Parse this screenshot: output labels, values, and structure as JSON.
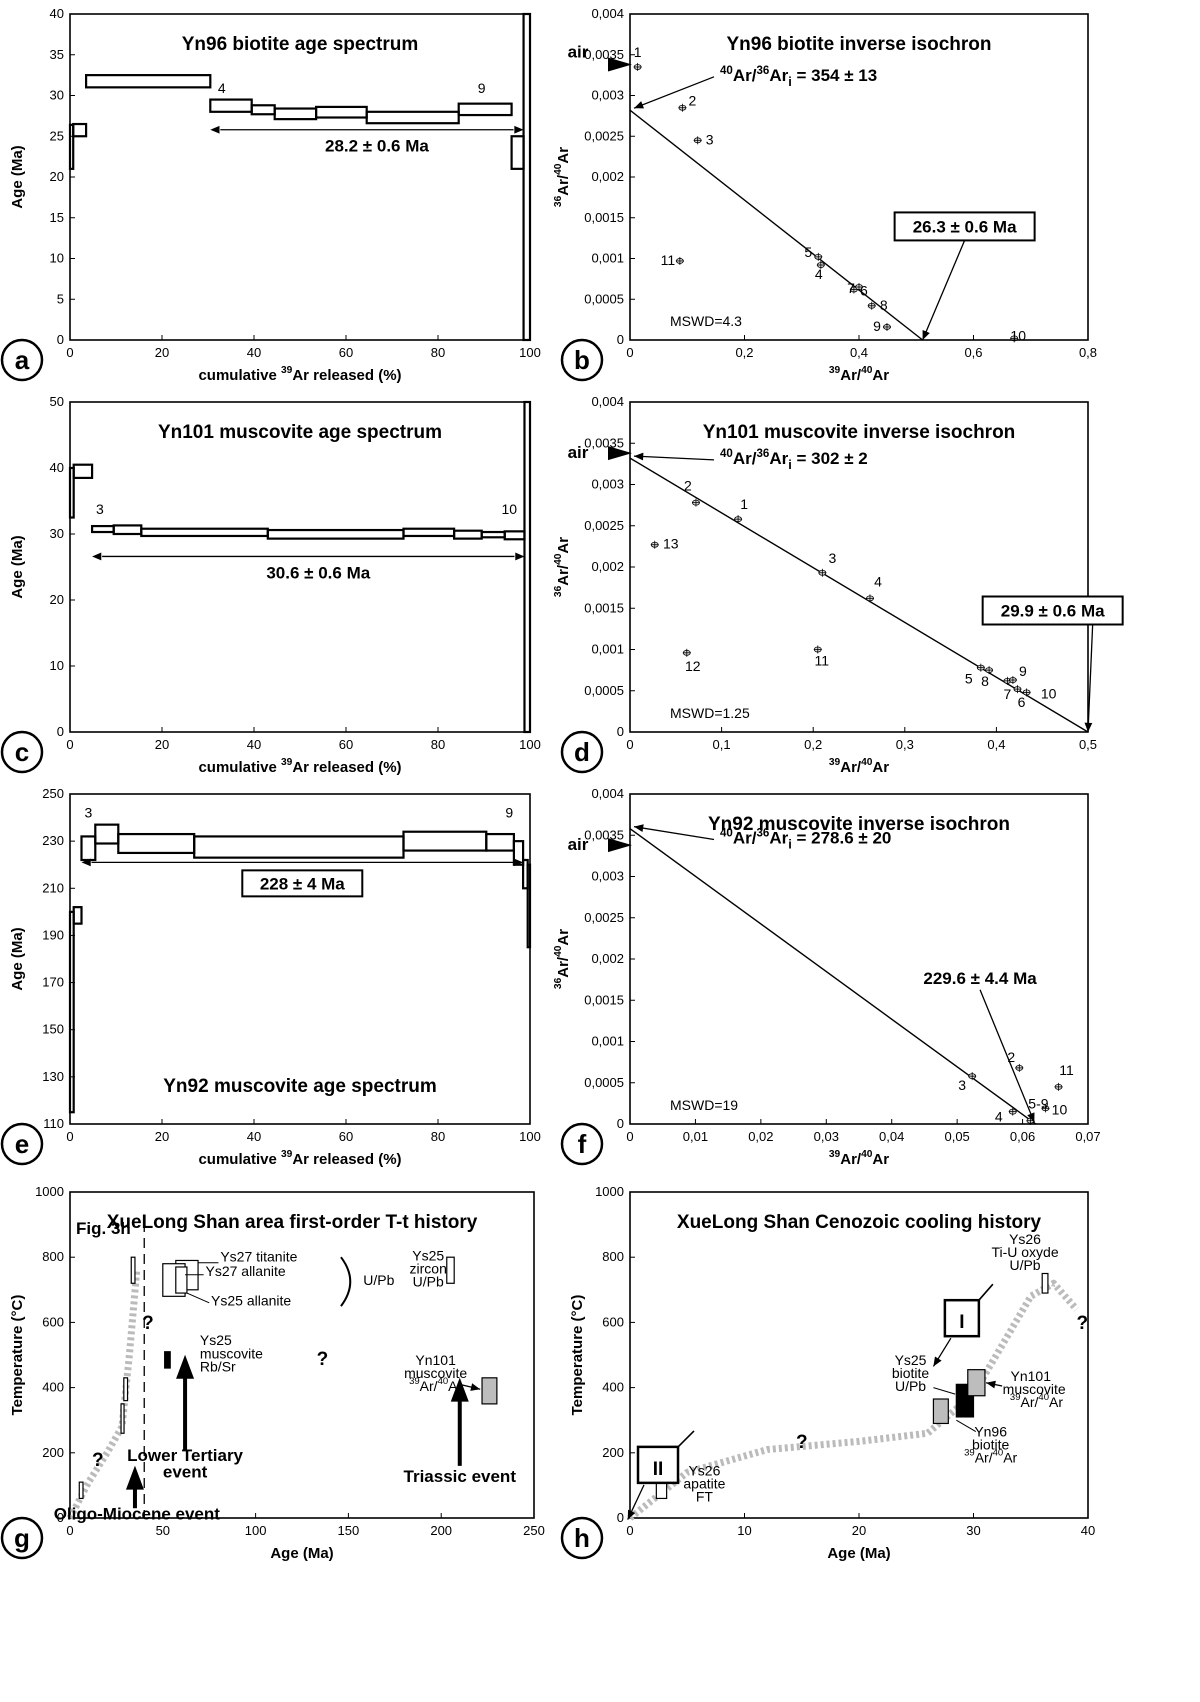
{
  "chart_data": [
    {
      "panel": "a",
      "type": "step",
      "title": "Yn96 biotite age spectrum",
      "xlabel": "cumulative 39Ar released (%)",
      "ylabel": "Age (Ma)",
      "xlim": [
        0,
        100
      ],
      "ylim": [
        0,
        40
      ],
      "xticks": [
        "0",
        "20",
        "40",
        "60",
        "80",
        "100"
      ],
      "yticks": [
        "0",
        "5",
        "10",
        "15",
        "20",
        "25",
        "30",
        "35",
        "40"
      ],
      "steps": [
        {
          "x0": 0,
          "x1": 0.7,
          "lo": 21.0,
          "hi": 26.4
        },
        {
          "x0": 0.7,
          "x1": 3.5,
          "lo": 25.0,
          "hi": 26.5
        },
        {
          "x0": 3.5,
          "x1": 30.5,
          "lo": 31.0,
          "hi": 32.5
        },
        {
          "x0": 30.5,
          "x1": 39.5,
          "lo": 28.0,
          "hi": 29.5
        },
        {
          "x0": 39.5,
          "x1": 44.5,
          "lo": 27.7,
          "hi": 28.8
        },
        {
          "x0": 44.5,
          "x1": 53.5,
          "lo": 27.1,
          "hi": 28.4
        },
        {
          "x0": 53.5,
          "x1": 64.5,
          "lo": 27.3,
          "hi": 28.6
        },
        {
          "x0": 64.5,
          "x1": 84.5,
          "lo": 26.6,
          "hi": 28.0
        },
        {
          "x0": 84.5,
          "x1": 96.0,
          "lo": 27.6,
          "hi": 29.0
        },
        {
          "x0": 96.0,
          "x1": 98.6,
          "lo": 21.0,
          "hi": 25.0
        },
        {
          "x0": 98.6,
          "x1": 100,
          "lo": 0,
          "hi": 40
        }
      ],
      "plateau": {
        "x0": 30.5,
        "x1": 98.6,
        "y": 25.8,
        "label": "28.2 ± 0.6 Ma",
        "boxed": false
      },
      "step_labels": [
        {
          "text": "4",
          "x": 33,
          "y": 30.3
        },
        {
          "text": "9",
          "x": 89.5,
          "y": 30.3
        }
      ]
    },
    {
      "panel": "b",
      "type": "scatter",
      "title": "Yn96 biotite inverse isochron",
      "xlabel": "39Ar/40Ar",
      "ylabel": "36Ar/40Ar",
      "xlim": [
        0,
        0.9
      ],
      "ylim": [
        0,
        0.004
      ],
      "xticks": [
        "0",
        "0,2",
        "0,4",
        "0,6",
        "0,8"
      ],
      "yticks": [
        "0",
        "0,0005",
        "0,001",
        "0,0015",
        "0,002",
        "0,0025",
        "0,003",
        "0,0035",
        "0,004"
      ],
      "points": [
        {
          "label": "1",
          "x": 0.015,
          "y": 0.00335
        },
        {
          "label": "2",
          "x": 0.103,
          "y": 0.00285
        },
        {
          "label": "3",
          "x": 0.133,
          "y": 0.00245
        },
        {
          "label": "4",
          "x": 0.375,
          "y": 0.00092
        },
        {
          "label": "5",
          "x": 0.37,
          "y": 0.00102
        },
        {
          "label": "6",
          "x": 0.44,
          "y": 0.00062
        },
        {
          "label": "7",
          "x": 0.45,
          "y": 0.00065
        },
        {
          "label": "8",
          "x": 0.475,
          "y": 0.00042
        },
        {
          "label": "9",
          "x": 0.505,
          "y": 0.00016
        },
        {
          "label": "10",
          "x": 0.755,
          "y": 2e-05
        },
        {
          "label": "11",
          "x": 0.098,
          "y": 0.00097
        }
      ],
      "isochron_line": {
        "x": [
          0,
          0.575
        ],
        "y": [
          0.00282,
          0
        ]
      },
      "air_label": "air",
      "air_y": 0.00338,
      "intercept_label": "40Ar/36Ari = 354 ± 13",
      "age_label": "26.3 ± 0.6 Ma",
      "mswd": "MSWD=4.3"
    },
    {
      "panel": "c",
      "type": "step",
      "title": "Yn101 muscovite age spectrum",
      "xlabel": "cumulative 39Ar released (%)",
      "ylabel": "Age (Ma)",
      "xlim": [
        0,
        100
      ],
      "ylim": [
        0,
        50
      ],
      "xticks": [
        "0",
        "20",
        "40",
        "60",
        "80",
        "100"
      ],
      "yticks": [
        "0",
        "10",
        "20",
        "30",
        "40",
        "50"
      ],
      "steps": [
        {
          "x0": 0,
          "x1": 0.8,
          "lo": 32.5,
          "hi": 40.0
        },
        {
          "x0": 0.8,
          "x1": 4.8,
          "lo": 38.5,
          "hi": 40.5
        },
        {
          "x0": 4.8,
          "x1": 9.5,
          "lo": 30.3,
          "hi": 31.2
        },
        {
          "x0": 9.5,
          "x1": 15.5,
          "lo": 30.0,
          "hi": 31.3
        },
        {
          "x0": 15.5,
          "x1": 43.0,
          "lo": 29.7,
          "hi": 30.8
        },
        {
          "x0": 43.0,
          "x1": 72.5,
          "lo": 29.3,
          "hi": 30.6
        },
        {
          "x0": 72.5,
          "x1": 83.5,
          "lo": 29.7,
          "hi": 30.8
        },
        {
          "x0": 83.5,
          "x1": 89.5,
          "lo": 29.3,
          "hi": 30.5
        },
        {
          "x0": 89.5,
          "x1": 94.5,
          "lo": 29.5,
          "hi": 30.3
        },
        {
          "x0": 94.5,
          "x1": 98.8,
          "lo": 29.2,
          "hi": 30.4
        },
        {
          "x0": 98.8,
          "x1": 100,
          "lo": 0,
          "hi": 50
        }
      ],
      "plateau": {
        "x0": 4.8,
        "x1": 98.8,
        "y": 26.6,
        "label": "30.6 ± 0.6 Ma",
        "boxed": false
      },
      "step_labels": [
        {
          "text": "3",
          "x": 6.5,
          "y": 33
        },
        {
          "text": "10",
          "x": 95.5,
          "y": 33
        }
      ]
    },
    {
      "panel": "d",
      "type": "scatter",
      "title": "Yn101 muscovite inverse isochron",
      "xlabel": "39Ar/40Ar",
      "ylabel": "36Ar/40Ar",
      "xlim": [
        0,
        0.5
      ],
      "ylim": [
        0,
        0.004
      ],
      "xticks": [
        "0",
        "0,1",
        "0,2",
        "0,3",
        "0,4",
        "0,5"
      ],
      "yticks": [
        "0",
        "0,0005",
        "0,001",
        "0,0015",
        "0,002",
        "0,0025",
        "0,003",
        "0,0035",
        "0,004"
      ],
      "points": [
        {
          "label": "1",
          "x": 0.118,
          "y": 0.00258
        },
        {
          "label": "2",
          "x": 0.072,
          "y": 0.00278
        },
        {
          "label": "3",
          "x": 0.21,
          "y": 0.00193
        },
        {
          "label": "4",
          "x": 0.262,
          "y": 0.00162
        },
        {
          "label": "5",
          "x": 0.383,
          "y": 0.00078
        },
        {
          "label": "6",
          "x": 0.423,
          "y": 0.00052
        },
        {
          "label": "7",
          "x": 0.412,
          "y": 0.00062
        },
        {
          "label": "8",
          "x": 0.392,
          "y": 0.00075
        },
        {
          "label": "9",
          "x": 0.418,
          "y": 0.00063
        },
        {
          "label": "10",
          "x": 0.433,
          "y": 0.00048
        },
        {
          "label": "11",
          "x": 0.205,
          "y": 0.001
        },
        {
          "label": "12",
          "x": 0.062,
          "y": 0.00096
        },
        {
          "label": "13",
          "x": 0.027,
          "y": 0.00227
        }
      ],
      "isochron_line": {
        "x": [
          0,
          0.5
        ],
        "y": [
          0.00332,
          0
        ]
      },
      "air_label": "air",
      "air_y": 0.00338,
      "intercept_label": "40Ar/36Ari = 302 ± 2",
      "age_label": "29.9 ± 0.6 Ma",
      "mswd": "MSWD=1.25"
    },
    {
      "panel": "e",
      "type": "step",
      "title": "Yn92 muscovite age spectrum",
      "xlabel": "cumulative 39Ar released (%)",
      "ylabel": "Age (Ma)",
      "xlim": [
        0,
        100
      ],
      "ylim": [
        110,
        250
      ],
      "xticks": [
        "0",
        "20",
        "40",
        "60",
        "80",
        "100"
      ],
      "yticks": [
        "110",
        "130",
        "150",
        "170",
        "190",
        "210",
        "230",
        "250"
      ],
      "steps": [
        {
          "x0": 0,
          "x1": 0.8,
          "lo": 115,
          "hi": 200
        },
        {
          "x0": 0.8,
          "x1": 2.5,
          "lo": 195,
          "hi": 202
        },
        {
          "x0": 2.5,
          "x1": 5.5,
          "lo": 222,
          "hi": 232
        },
        {
          "x0": 5.5,
          "x1": 10.5,
          "lo": 229,
          "hi": 237
        },
        {
          "x0": 10.5,
          "x1": 27.0,
          "lo": 225,
          "hi": 233
        },
        {
          "x0": 27.0,
          "x1": 72.5,
          "lo": 223,
          "hi": 232
        },
        {
          "x0": 72.5,
          "x1": 90.5,
          "lo": 226,
          "hi": 234
        },
        {
          "x0": 90.5,
          "x1": 96.5,
          "lo": 226,
          "hi": 233
        },
        {
          "x0": 96.5,
          "x1": 98.5,
          "lo": 220,
          "hi": 230
        },
        {
          "x0": 98.5,
          "x1": 99.5,
          "lo": 210,
          "hi": 222
        },
        {
          "x0": 99.5,
          "x1": 100,
          "lo": 185,
          "hi": 220
        }
      ],
      "plateau": {
        "x0": 2.5,
        "x1": 98.5,
        "y": 221,
        "label": "228 ± 4 Ma",
        "boxed": true
      },
      "step_labels": [
        {
          "text": "3",
          "x": 4,
          "y": 240
        },
        {
          "text": "9",
          "x": 95.5,
          "y": 240
        }
      ]
    },
    {
      "panel": "f",
      "type": "scatter",
      "title": "Yn92 muscovite inverse isochron",
      "xlabel": "39Ar/40Ar",
      "ylabel": "36Ar/40Ar",
      "xlim": [
        0,
        0.07
      ],
      "ylim": [
        0,
        0.004
      ],
      "xticks": [
        "0",
        "0,01",
        "0,02",
        "0,03",
        "0,04",
        "0,05",
        "0,06",
        "0,07"
      ],
      "yticks": [
        "0",
        "0,0005",
        "0,001",
        "0,0015",
        "0,002",
        "0,0025",
        "0,003",
        "0,0035",
        "0,004"
      ],
      "points": [
        {
          "label": "2",
          "x": 0.0595,
          "y": 0.00068
        },
        {
          "label": "3",
          "x": 0.0523,
          "y": 0.00058
        },
        {
          "label": "4",
          "x": 0.0585,
          "y": 0.00015
        },
        {
          "label": "5-9",
          "x": 0.0612,
          "y": 4e-05
        },
        {
          "label": "10",
          "x": 0.0635,
          "y": 0.00019
        },
        {
          "label": "11",
          "x": 0.0655,
          "y": 0.00045
        }
      ],
      "isochron_line": {
        "x": [
          0,
          0.062
        ],
        "y": [
          0.00358,
          0
        ]
      },
      "air_label": "air",
      "air_y": 0.00338,
      "intercept_label": "40Ar/36Ari = 278.6 ± 20",
      "age_label": "229.6 ± 4.4 Ma",
      "mswd": "MSWD=19"
    },
    {
      "panel": "g",
      "type": "thermal-history",
      "title": "XueLong Shan area first-order T-t history",
      "xlabel": "Age (Ma)",
      "ylabel": "Temperature (°C)",
      "xlim": [
        0,
        250
      ],
      "ylim": [
        0,
        1000
      ],
      "xticks": [
        "0",
        "50",
        "100",
        "150",
        "200",
        "250"
      ],
      "yticks": [
        "0",
        "200",
        "400",
        "600",
        "800",
        "1000"
      ],
      "ref_label": "Fig. 3h",
      "boxes": [
        {
          "label": "Ys27 titanite",
          "x0": 57,
          "x1": 69,
          "y0": 700,
          "y1": 790
        },
        {
          "label": "Ys27 allanite",
          "x0": 50,
          "x1": 62,
          "y0": 680,
          "y1": 780
        },
        {
          "label": "Ys25 allanite",
          "x0": 57,
          "x1": 63,
          "y0": 690,
          "y1": 770
        },
        {
          "label": "Ys25 zircon U/Pb",
          "x0": 203,
          "x1": 207,
          "y0": 720,
          "y1": 800
        },
        {
          "label": "Ys25 muscovite Rb/Sr",
          "x0": 51,
          "x1": 54,
          "y0": 460,
          "y1": 510,
          "fill": "black"
        },
        {
          "label": "Yn101 muscovite 39Ar/40Ar",
          "x0": 222,
          "x1": 230,
          "y0": 350,
          "y1": 430,
          "fill": "gray"
        },
        {
          "label": "",
          "x0": 33,
          "x1": 35,
          "y0": 720,
          "y1": 800
        },
        {
          "label": "",
          "x0": 29,
          "x1": 31,
          "y0": 360,
          "y1": 430
        },
        {
          "label": "",
          "x0": 27.5,
          "x1": 29,
          "y0": 260,
          "y1": 350
        },
        {
          "label": "",
          "x0": 5,
          "x1": 7,
          "y0": 60,
          "y1": 110
        }
      ],
      "path_points": [
        [
          0,
          0
        ],
        [
          10,
          110
        ],
        [
          20,
          200
        ],
        [
          28,
          280
        ],
        [
          32,
          500
        ],
        [
          36,
          760
        ]
      ],
      "annotations": [
        "U/Pb",
        "Oligo-Miocene event",
        "Lower Tertiary event",
        "Triassic event",
        "?"
      ]
    },
    {
      "panel": "h",
      "type": "thermal-history",
      "title": "XueLong Shan Cenozoic cooling history",
      "xlabel": "Age (Ma)",
      "ylabel": "Temperature (°C)",
      "xlim": [
        0,
        40
      ],
      "ylim": [
        0,
        1000
      ],
      "xticks": [
        "0",
        "10",
        "20",
        "30",
        "40"
      ],
      "yticks": [
        "0",
        "200",
        "400",
        "600",
        "800",
        "1000"
      ],
      "boxes": [
        {
          "label": "Ys26 Ti-U oxyde U/Pb",
          "x0": 36,
          "x1": 36.5,
          "y0": 690,
          "y1": 750
        },
        {
          "label": "Ys25 biotite U/Pb",
          "x0": 28.5,
          "x1": 30,
          "y0": 310,
          "y1": 410,
          "fill": "black"
        },
        {
          "label": "Yn101 muscovite 39Ar/40Ar",
          "x0": 29.5,
          "x1": 31,
          "y0": 375,
          "y1": 455,
          "fill": "gray"
        },
        {
          "label": "Yn96 biotite 39Ar/40Ar",
          "x0": 26.5,
          "x1": 27.8,
          "y0": 290,
          "y1": 365,
          "fill": "gray"
        },
        {
          "label": "Ys26 apatite FT",
          "x0": 2.3,
          "x1": 3.2,
          "y0": 60,
          "y1": 110
        }
      ],
      "path_points": [
        [
          0,
          0
        ],
        [
          5,
          140
        ],
        [
          12,
          210
        ],
        [
          20,
          235
        ],
        [
          26,
          260
        ],
        [
          30,
          380
        ],
        [
          33,
          560
        ],
        [
          35,
          680
        ],
        [
          37,
          720
        ],
        [
          39,
          640
        ]
      ],
      "annotations": [
        "I",
        "II",
        "?",
        "?"
      ]
    }
  ]
}
